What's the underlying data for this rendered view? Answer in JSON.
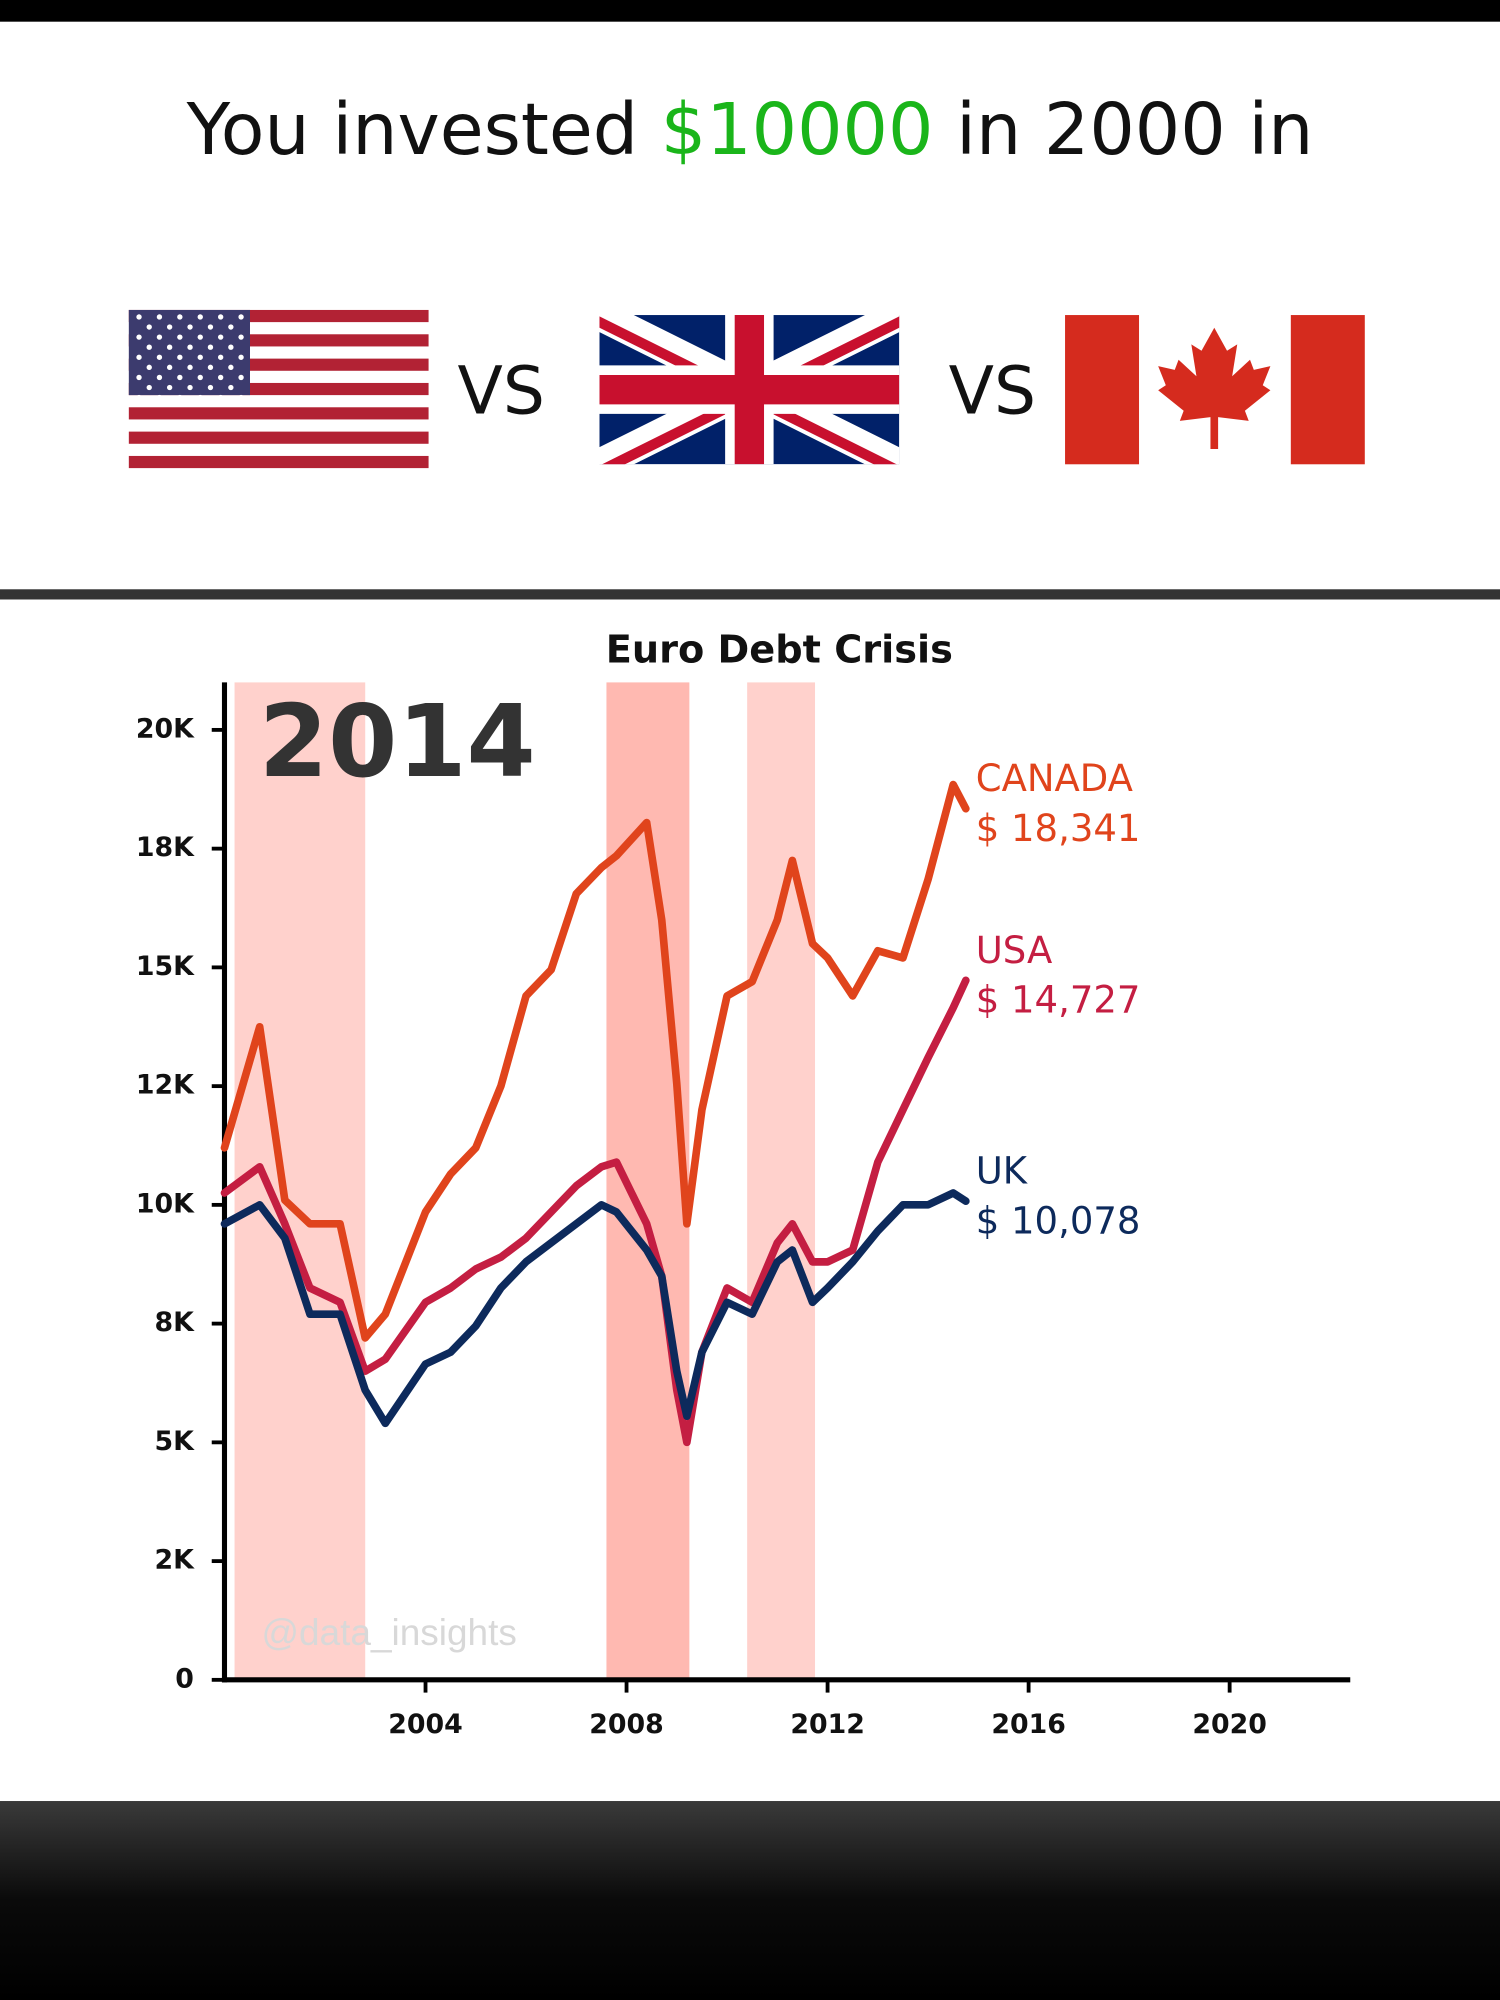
{
  "header": {
    "text_before": "You invested",
    "amount": "$10000",
    "text_after": "in 2000 in"
  },
  "flag_separators": [
    "VS",
    "VS"
  ],
  "chart_data": {
    "type": "line",
    "title": "Euro Debt Crisis",
    "annotations": {
      "year": "2014",
      "watermark": "@data_insights"
    },
    "x": [
      2000,
      2000.7,
      2001.2,
      2001.7,
      2002.3,
      2002.8,
      2003.2,
      2004,
      2004.5,
      2005,
      2005.5,
      2006,
      2006.5,
      2007,
      2007.5,
      2007.8,
      2008.4,
      2008.7,
      2009,
      2009.2,
      2009.5,
      2010,
      2010.5,
      2011,
      2011.3,
      2011.7,
      2012,
      2012.5,
      2013,
      2013.5,
      2014,
      2014.5,
      2014.75
    ],
    "series": [
      {
        "name": "CANADA",
        "color": "#e0441c",
        "values": [
          11200,
          13750,
          10100,
          9600,
          9600,
          7200,
          7700,
          9850,
          10650,
          11200,
          12500,
          14400,
          14950,
          16550,
          17100,
          17350,
          18050,
          16000,
          12550,
          9600,
          12000,
          14400,
          14700,
          16000,
          17250,
          15500,
          15200,
          14400,
          15350,
          15200,
          16850,
          18850,
          18341
        ],
        "value_labels": [
          null,
          null,
          null,
          null,
          null,
          null,
          null,
          null,
          null,
          null,
          null,
          null,
          null,
          null,
          null,
          null,
          null,
          null,
          null,
          null,
          null,
          null,
          null,
          null,
          null,
          null,
          null,
          null,
          null,
          null,
          null,
          null,
          "$ 18,341"
        ]
      },
      {
        "name": "USA",
        "color": "#c41e42",
        "values": [
          10250,
          10800,
          9600,
          8250,
          7950,
          6500,
          6750,
          7950,
          8250,
          8650,
          8900,
          9300,
          9850,
          10400,
          10800,
          10900,
          9600,
          8500,
          6100,
          5000,
          6900,
          8250,
          7950,
          9200,
          9600,
          8800,
          8800,
          9050,
          10900,
          12000,
          13100,
          14150,
          14727
        ],
        "value_labels": [
          null,
          null,
          null,
          null,
          null,
          null,
          null,
          null,
          null,
          null,
          null,
          null,
          null,
          null,
          null,
          null,
          null,
          null,
          null,
          null,
          null,
          null,
          null,
          null,
          null,
          null,
          null,
          null,
          null,
          null,
          null,
          null,
          "$ 14,727"
        ]
      },
      {
        "name": "UK",
        "color": "#0d2a5c",
        "values": [
          9600,
          10000,
          9300,
          7700,
          7700,
          6100,
          5400,
          6650,
          6900,
          7450,
          8250,
          8800,
          9200,
          9600,
          10000,
          9850,
          9050,
          8500,
          6500,
          5550,
          6900,
          7950,
          7700,
          8800,
          9050,
          7950,
          8250,
          8800,
          9450,
          10000,
          10000,
          10250,
          10078
        ],
        "value_labels": [
          null,
          null,
          null,
          null,
          null,
          null,
          null,
          null,
          null,
          null,
          null,
          null,
          null,
          null,
          null,
          null,
          null,
          null,
          null,
          null,
          null,
          null,
          null,
          null,
          null,
          null,
          null,
          null,
          null,
          null,
          null,
          null,
          "$ 10,078"
        ]
      }
    ],
    "shaded_regions": [
      {
        "start": 2000.2,
        "end": 2002.8,
        "color": "#ffd1cc"
      },
      {
        "start": 2007.6,
        "end": 2009.25,
        "color": "#ffb9b1"
      },
      {
        "start": 2010.4,
        "end": 2011.75,
        "color": "#ffd1cc"
      }
    ],
    "xlim": [
      2000,
      2022.4
    ],
    "xticks": [
      2004,
      2008,
      2012,
      2016,
      2020
    ],
    "ylim": [
      0,
      21000
    ],
    "yticks": [
      0,
      {
        "value": 2500,
        "label": "2K"
      },
      {
        "value": 5000,
        "label": "5K"
      },
      {
        "value": 7500,
        "label": "8K"
      },
      {
        "value": 10000,
        "label": "10K"
      },
      {
        "value": 12500,
        "label": "12K"
      },
      {
        "value": 15000,
        "label": "15K"
      },
      {
        "value": 17500,
        "label": "18K"
      },
      {
        "value": 20000,
        "label": "20K"
      }
    ],
    "grid": false
  }
}
